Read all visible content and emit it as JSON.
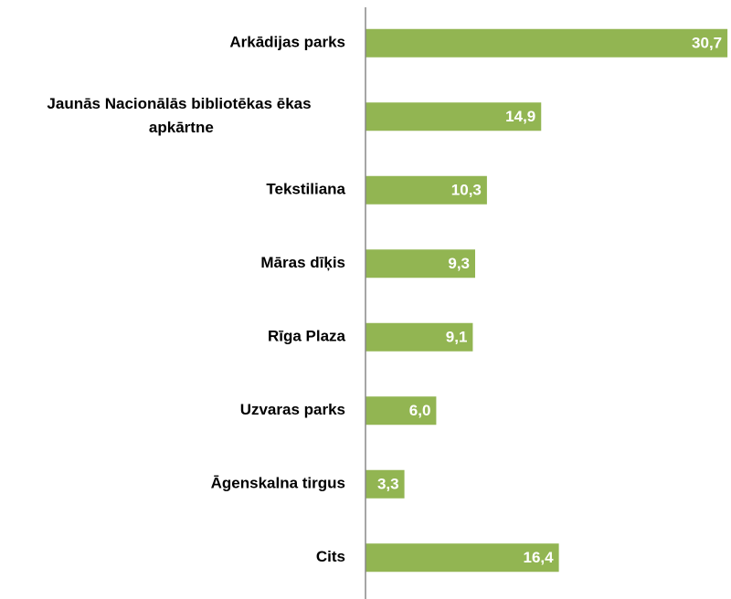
{
  "chart_data": {
    "type": "hbar",
    "categories": [
      "Arkādijas parks",
      "Jaunās Nacionālās bibliotēkas ēkas apkārtne",
      "Tekstiliana",
      "Māras dīķis",
      "Rīga Plaza",
      "Uzvaras parks",
      "Āgenskalna tirgus",
      "Cits"
    ],
    "values": [
      30.7,
      14.9,
      10.3,
      9.3,
      9.1,
      6.0,
      3.3,
      16.4
    ],
    "value_labels": [
      "30,7",
      "14,9",
      "10,3",
      "9,3",
      "9,1",
      "6,0",
      "3,3",
      "16,4"
    ],
    "color": "#92b552",
    "xlim": [
      0,
      31
    ]
  }
}
